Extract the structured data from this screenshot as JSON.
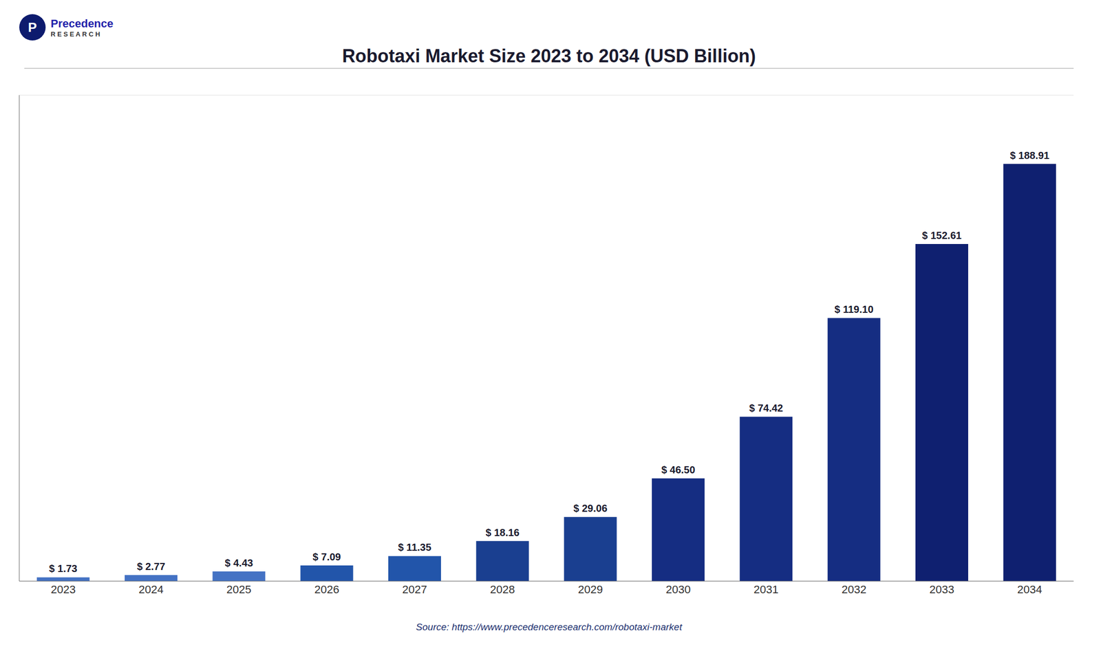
{
  "chart_data": {
    "type": "bar",
    "title": "Robotaxi Market Size 2023 to 2034 (USD Billion)",
    "categories": [
      "2023",
      "2024",
      "2025",
      "2026",
      "2027",
      "2028",
      "2029",
      "2030",
      "2031",
      "2032",
      "2033",
      "2034"
    ],
    "values": [
      1.73,
      2.77,
      4.43,
      7.09,
      11.35,
      18.16,
      29.06,
      46.5,
      74.42,
      119.1,
      152.61,
      188.91
    ],
    "value_labels": [
      "$ 1.73",
      "$ 2.77",
      "$ 4.43",
      "$ 7.09",
      "$ 11.35",
      "$ 18.16",
      "$ 29.06",
      "$ 46.50",
      "$ 74.42",
      "$ 119.10",
      "$ 152.61",
      "$ 188.91"
    ],
    "data_labels": true,
    "colors": [
      "#4472C4",
      "#4472C4",
      "#4472C4",
      "#2255AA",
      "#2255AA",
      "#1a3f90",
      "#1a3f90",
      "#152D82",
      "#152D82",
      "#152D82",
      "#0f2070",
      "#0f2070"
    ],
    "ylim": [
      0,
      220
    ],
    "yticks": [
      0,
      25,
      50,
      75,
      100,
      125,
      150,
      175,
      200
    ],
    "grid": true,
    "tick_labels": "x",
    "annotations": [
      "Source: https://www.precedenceresearch.com/robotaxi-market",
      "Precedence",
      "R E S E A R C H",
      "P"
    ]
  }
}
